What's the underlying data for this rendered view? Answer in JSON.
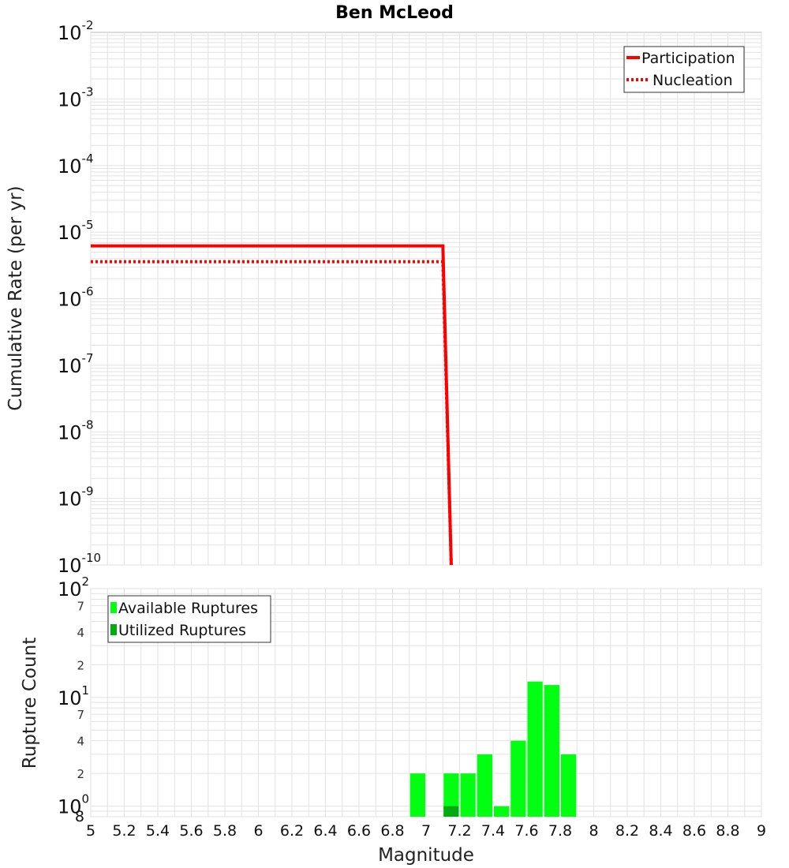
{
  "chart_data": [
    {
      "type": "line",
      "title": "Ben McLeod",
      "xlabel": "Magnitude",
      "ylabel": "Cumulative Rate (per yr)",
      "xlim": [
        5,
        9
      ],
      "ylim": [
        1e-10,
        0.01
      ],
      "yscale": "log",
      "y_ticks": [
        {
          "base": "10",
          "exp": "-2"
        },
        {
          "base": "10",
          "exp": "-3"
        },
        {
          "base": "10",
          "exp": "-4"
        },
        {
          "base": "10",
          "exp": "-5"
        },
        {
          "base": "10",
          "exp": "-6"
        },
        {
          "base": "10",
          "exp": "-7"
        },
        {
          "base": "10",
          "exp": "-8"
        },
        {
          "base": "10",
          "exp": "-9"
        },
        {
          "base": "10",
          "exp": "-10"
        }
      ],
      "legend_position": "top-right",
      "series": [
        {
          "name": "Participation",
          "style": "solid",
          "color": "#ff0000",
          "x": [
            5.0,
            7.1,
            7.15
          ],
          "y": [
            6.2e-06,
            6.2e-06,
            1e-10
          ]
        },
        {
          "name": "Nucleation",
          "style": "dotted",
          "color": "#ff0000",
          "x": [
            5.0,
            7.1,
            7.15
          ],
          "y": [
            3.6e-06,
            3.6e-06,
            1e-10
          ]
        }
      ]
    },
    {
      "type": "bar",
      "xlabel": "Magnitude",
      "ylabel": "Rupture Count",
      "xlim": [
        5,
        9
      ],
      "ylim": [
        0.8,
        100
      ],
      "yscale": "log",
      "x_ticks": [
        "5",
        "5.2",
        "5.4",
        "5.6",
        "5.8",
        "6",
        "6.2",
        "6.4",
        "6.6",
        "6.8",
        "7",
        "7.2",
        "7.4",
        "7.6",
        "7.8",
        "8",
        "8.2",
        "8.4",
        "8.6",
        "8.8",
        "9"
      ],
      "y_major_ticks": [
        {
          "base": "10",
          "exp": "2"
        },
        {
          "base": "10",
          "exp": "1"
        },
        {
          "base": "10",
          "exp": "0"
        }
      ],
      "y_minor_ticks": [
        "7",
        "4",
        "2",
        "7",
        "4",
        "2",
        "8"
      ],
      "legend_position": "top-left",
      "bin_width": 0.1,
      "series": [
        {
          "name": "Available Ruptures",
          "color": "#00ff10",
          "x": [
            6.95,
            7.15,
            7.25,
            7.35,
            7.45,
            7.55,
            7.65,
            7.75,
            7.85
          ],
          "values": [
            2,
            2,
            2,
            3,
            1,
            4,
            14,
            13,
            3
          ]
        },
        {
          "name": "Utilized Ruptures",
          "color": "#00aa10",
          "x": [
            7.15
          ],
          "values": [
            1
          ]
        }
      ]
    }
  ],
  "colors": {
    "participation": "#ff0000",
    "nucleation": "#ff0000",
    "available": "#00ff10",
    "utilized": "#00aa10",
    "grid": "#e2e2e2"
  }
}
